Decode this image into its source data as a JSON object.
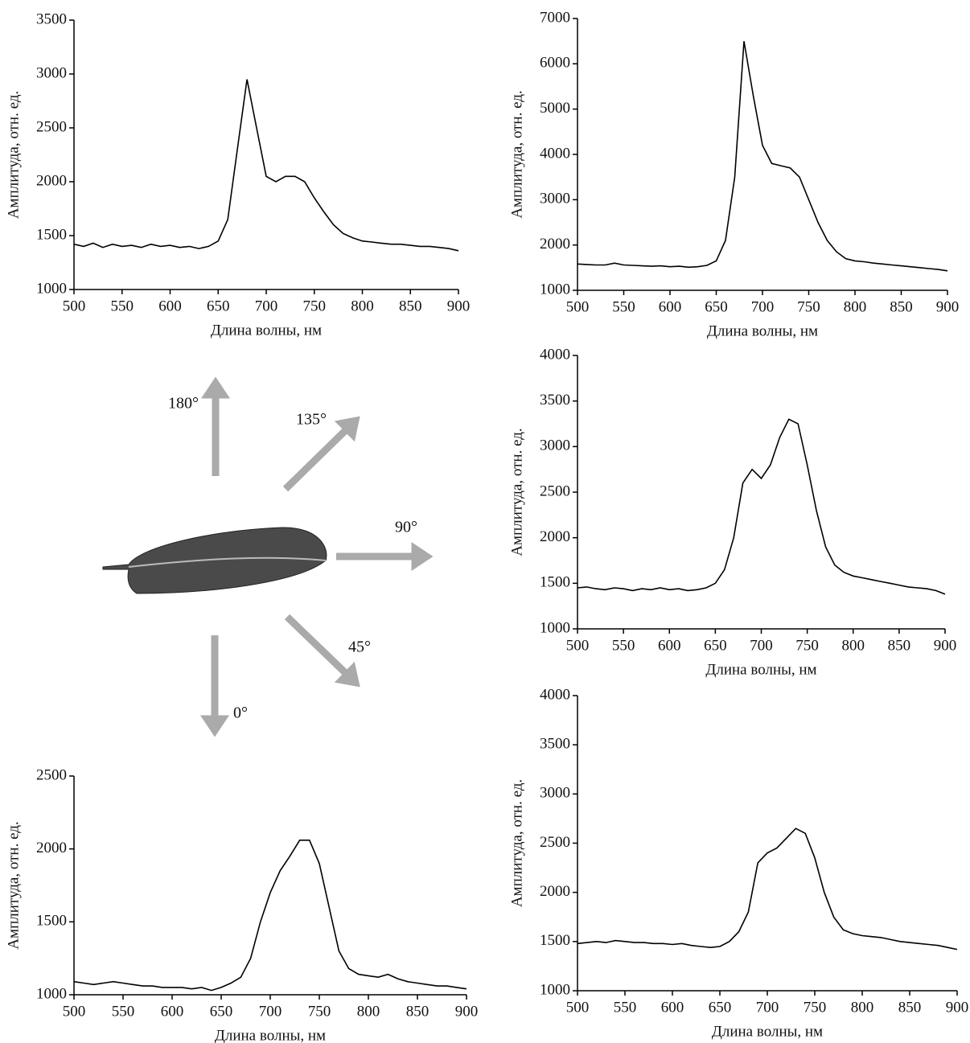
{
  "chart_data": [
    {
      "type": "line",
      "xlabel": "Длина волны, нм",
      "ylabel": "Амплитуда, отн. ед.",
      "color": "#000000",
      "x": [
        500,
        510,
        520,
        530,
        540,
        550,
        560,
        570,
        580,
        590,
        600,
        610,
        620,
        630,
        640,
        650,
        660,
        670,
        680,
        690,
        700,
        710,
        720,
        730,
        740,
        750,
        760,
        770,
        780,
        790,
        800,
        810,
        820,
        830,
        840,
        850,
        860,
        870,
        880,
        890,
        900
      ],
      "values": [
        1420,
        1400,
        1430,
        1390,
        1420,
        1400,
        1410,
        1390,
        1420,
        1400,
        1410,
        1390,
        1400,
        1380,
        1400,
        1450,
        1650,
        2300,
        2950,
        2500,
        2050,
        2000,
        2050,
        2050,
        2000,
        1850,
        1720,
        1600,
        1520,
        1480,
        1450,
        1440,
        1430,
        1420,
        1420,
        1410,
        1400,
        1400,
        1390,
        1380,
        1360
      ],
      "xlim": [
        500,
        900
      ],
      "xticks": [
        500,
        550,
        600,
        650,
        700,
        750,
        800,
        850,
        900
      ],
      "ylim": [
        1000,
        3500
      ],
      "yticks": [
        1000,
        1500,
        2000,
        2500,
        3000,
        3500
      ]
    },
    {
      "type": "line",
      "xlabel": "Длина волны, нм",
      "ylabel": "Амплитуда, отн. ед.",
      "color": "#000000",
      "x": [
        500,
        510,
        520,
        530,
        540,
        550,
        560,
        570,
        580,
        590,
        600,
        610,
        620,
        630,
        640,
        650,
        660,
        670,
        680,
        690,
        700,
        710,
        720,
        730,
        740,
        750,
        760,
        770,
        780,
        790,
        800,
        810,
        820,
        830,
        840,
        850,
        860,
        870,
        880,
        890,
        900
      ],
      "values": [
        1580,
        1570,
        1560,
        1560,
        1600,
        1560,
        1550,
        1540,
        1530,
        1540,
        1520,
        1530,
        1510,
        1520,
        1550,
        1650,
        2100,
        3500,
        6500,
        5300,
        4200,
        3800,
        3750,
        3700,
        3500,
        3000,
        2500,
        2100,
        1850,
        1700,
        1650,
        1630,
        1600,
        1580,
        1560,
        1540,
        1520,
        1500,
        1480,
        1460,
        1430
      ],
      "xlim": [
        500,
        900
      ],
      "xticks": [
        500,
        550,
        600,
        650,
        700,
        750,
        800,
        850,
        900
      ],
      "ylim": [
        1000,
        7000
      ],
      "yticks": [
        1000,
        2000,
        3000,
        4000,
        5000,
        6000,
        7000
      ]
    },
    {
      "type": "line",
      "xlabel": "Длина волны, нм",
      "ylabel": "Амплитуда, отн. ед.",
      "color": "#000000",
      "x": [
        500,
        510,
        520,
        530,
        540,
        550,
        560,
        570,
        580,
        590,
        600,
        610,
        620,
        630,
        640,
        650,
        660,
        670,
        680,
        690,
        700,
        710,
        720,
        730,
        740,
        750,
        760,
        770,
        780,
        790,
        800,
        810,
        820,
        830,
        840,
        850,
        860,
        870,
        880,
        890,
        900
      ],
      "values": [
        1450,
        1460,
        1440,
        1430,
        1450,
        1440,
        1420,
        1440,
        1430,
        1450,
        1430,
        1440,
        1420,
        1430,
        1450,
        1500,
        1650,
        2000,
        2600,
        2750,
        2650,
        2800,
        3100,
        3300,
        3250,
        2800,
        2300,
        1900,
        1700,
        1620,
        1580,
        1560,
        1540,
        1520,
        1500,
        1480,
        1460,
        1450,
        1440,
        1420,
        1380
      ],
      "xlim": [
        500,
        900
      ],
      "xticks": [
        500,
        550,
        600,
        650,
        700,
        750,
        800,
        850,
        900
      ],
      "ylim": [
        1000,
        4000
      ],
      "yticks": [
        1000,
        1500,
        2000,
        2500,
        3000,
        3500,
        4000
      ]
    },
    {
      "type": "line",
      "xlabel": "Длина волны, нм",
      "ylabel": "Амплитуда, отн. ед.",
      "color": "#000000",
      "x": [
        500,
        510,
        520,
        530,
        540,
        550,
        560,
        570,
        580,
        590,
        600,
        610,
        620,
        630,
        640,
        650,
        660,
        670,
        680,
        690,
        700,
        710,
        720,
        730,
        740,
        750,
        760,
        770,
        780,
        790,
        800,
        810,
        820,
        830,
        840,
        850,
        860,
        870,
        880,
        890,
        900
      ],
      "values": [
        1090,
        1080,
        1070,
        1080,
        1090,
        1080,
        1070,
        1060,
        1060,
        1050,
        1050,
        1050,
        1040,
        1050,
        1030,
        1050,
        1080,
        1120,
        1250,
        1500,
        1700,
        1850,
        1950,
        2060,
        2060,
        1900,
        1600,
        1300,
        1180,
        1140,
        1130,
        1120,
        1140,
        1110,
        1090,
        1080,
        1070,
        1060,
        1060,
        1050,
        1040
      ],
      "xlim": [
        500,
        900
      ],
      "xticks": [
        500,
        550,
        600,
        650,
        700,
        750,
        800,
        850,
        900
      ],
      "ylim": [
        1000,
        2500
      ],
      "yticks": [
        1000,
        1500,
        2000,
        2500
      ]
    },
    {
      "type": "line",
      "xlabel": "Длина волны, нм",
      "ylabel": "Амплитуда, отн. ед.",
      "color": "#000000",
      "x": [
        500,
        510,
        520,
        530,
        540,
        550,
        560,
        570,
        580,
        590,
        600,
        610,
        620,
        630,
        640,
        650,
        660,
        670,
        680,
        690,
        700,
        710,
        720,
        730,
        740,
        750,
        760,
        770,
        780,
        790,
        800,
        810,
        820,
        830,
        840,
        850,
        860,
        870,
        880,
        890,
        900
      ],
      "values": [
        1480,
        1490,
        1500,
        1490,
        1510,
        1500,
        1490,
        1490,
        1480,
        1480,
        1470,
        1480,
        1460,
        1450,
        1440,
        1450,
        1500,
        1600,
        1800,
        2300,
        2400,
        2450,
        2550,
        2650,
        2600,
        2350,
        2000,
        1750,
        1620,
        1580,
        1560,
        1550,
        1540,
        1520,
        1500,
        1490,
        1480,
        1470,
        1460,
        1440,
        1420
      ],
      "xlim": [
        500,
        900
      ],
      "xticks": [
        500,
        550,
        600,
        650,
        700,
        750,
        800,
        850,
        900
      ],
      "ylim": [
        1000,
        4000
      ],
      "yticks": [
        1000,
        1500,
        2000,
        2500,
        3000,
        3500,
        4000
      ]
    }
  ],
  "diagram": {
    "angles": [
      "180°",
      "135°",
      "90°",
      "45°",
      "0°"
    ]
  }
}
